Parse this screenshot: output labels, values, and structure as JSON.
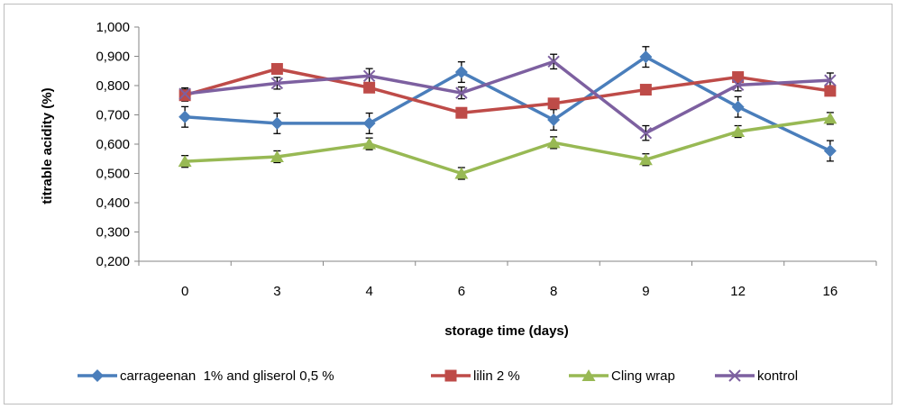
{
  "chart_data": {
    "type": "line",
    "xlabel": "storage time (days)",
    "ylabel": "titrable acidity (%)",
    "categories": [
      "0",
      "3",
      "4",
      "6",
      "8",
      "9",
      "12",
      "16"
    ],
    "ylim": [
      0.2,
      1.0
    ],
    "yticks": [
      "0,200",
      "0,300",
      "0,400",
      "0,500",
      "0,600",
      "0,700",
      "0,800",
      "0,900",
      "1,000"
    ],
    "grid": false,
    "legend_position": "bottom",
    "series": [
      {
        "name": "carrageenan  1% and gliserol 0,5 %",
        "color": "#4a7ebb",
        "marker": "diamond",
        "values": [
          0.693,
          0.671,
          0.671,
          0.846,
          0.683,
          0.898,
          0.727,
          0.577
        ],
        "errors": [
          0.035,
          0.035,
          0.035,
          0.035,
          0.035,
          0.035,
          0.035,
          0.035
        ]
      },
      {
        "name": "lilin 2 %",
        "color": "#be4b48",
        "marker": "square",
        "values": [
          0.767,
          0.857,
          0.793,
          0.707,
          0.739,
          0.786,
          0.829,
          0.782
        ],
        "errors": [
          0.02,
          0.0,
          0.0,
          0.0,
          0.0,
          0.0,
          0.0,
          0.0
        ]
      },
      {
        "name": "Cling wrap",
        "color": "#98b954",
        "marker": "triangle",
        "values": [
          0.541,
          0.557,
          0.601,
          0.5,
          0.605,
          0.547,
          0.643,
          0.688
        ],
        "errors": [
          0.02,
          0.02,
          0.02,
          0.02,
          0.02,
          0.02,
          0.02,
          0.02
        ]
      },
      {
        "name": "kontrol",
        "color": "#7d60a0",
        "marker": "x",
        "values": [
          0.772,
          0.808,
          0.833,
          0.775,
          0.882,
          0.638,
          0.802,
          0.818
        ],
        "errors": [
          0.02,
          0.02,
          0.025,
          0.02,
          0.025,
          0.025,
          0.02,
          0.025
        ]
      }
    ]
  }
}
